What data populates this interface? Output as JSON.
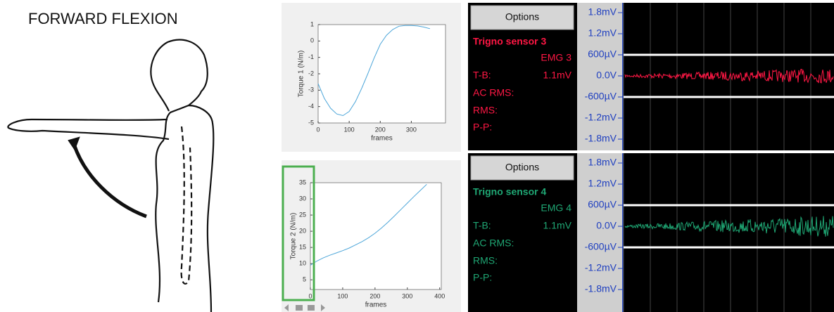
{
  "figure": {
    "title": "FORWARD FLEXION"
  },
  "chart_data": [
    {
      "type": "line",
      "x_label": "frames",
      "y_label": "Torque  1 (N/m)",
      "color": "#4da6d9",
      "x": [
        0,
        20,
        40,
        60,
        80,
        100,
        120,
        140,
        160,
        180,
        200,
        220,
        240,
        260,
        280,
        300,
        320,
        340,
        360
      ],
      "values": [
        -2.6,
        -3.5,
        -4.1,
        -4.45,
        -4.55,
        -4.3,
        -3.7,
        -2.9,
        -2.0,
        -1.05,
        -0.2,
        0.35,
        0.7,
        0.9,
        0.95,
        0.95,
        0.92,
        0.85,
        0.75
      ],
      "xlim": [
        0,
        410
      ],
      "xticks": [
        0,
        100,
        200,
        300
      ],
      "ylim": [
        -5,
        1
      ],
      "yticks": [
        -5,
        -4,
        -3,
        -2,
        -1,
        0,
        1
      ]
    },
    {
      "type": "line",
      "x_label": "frames",
      "y_label": "Torque  2 (N/m)",
      "color": "#4da6d9",
      "x": [
        0,
        20,
        40,
        60,
        80,
        100,
        120,
        140,
        160,
        180,
        200,
        220,
        240,
        260,
        280,
        300,
        320,
        340,
        360
      ],
      "values": [
        9.5,
        10.8,
        11.8,
        12.6,
        13.3,
        14.0,
        14.8,
        15.8,
        16.8,
        18.0,
        19.4,
        21.0,
        22.8,
        24.7,
        26.7,
        28.7,
        30.7,
        32.6,
        34.5
      ],
      "xlim": [
        0,
        405
      ],
      "xticks": [
        0,
        100,
        200,
        300,
        400
      ],
      "ylim": [
        2,
        35
      ],
      "yticks": [
        5,
        10,
        15,
        20,
        25,
        30,
        35
      ]
    }
  ],
  "emg_panels": [
    {
      "options": "Options",
      "sensor": "Trigno sensor 3",
      "channel": "EMG 3",
      "tb_label": "T-B:",
      "tb_value": "1.1mV",
      "ac_rms": "AC RMS:",
      "rms": "RMS:",
      "pp": "P-P:",
      "color": "#ff1744",
      "scale": [
        "1.8mV",
        "1.2mV",
        "600µV",
        "0.0V",
        "-600µV",
        "-1.2mV",
        "-1.8mV"
      ]
    },
    {
      "options": "Options",
      "sensor": "Trigno sensor 4",
      "channel": "EMG 4",
      "tb_label": "T-B:",
      "tb_value": "1.1mV",
      "ac_rms": "AC RMS:",
      "rms": "RMS:",
      "pp": "P-P:",
      "color": "#1fa774",
      "scale": [
        "1.8mV",
        "1.2mV",
        "600µV",
        "0.0V",
        "-600µV",
        "-1.2mV",
        "-1.8mV"
      ]
    }
  ]
}
